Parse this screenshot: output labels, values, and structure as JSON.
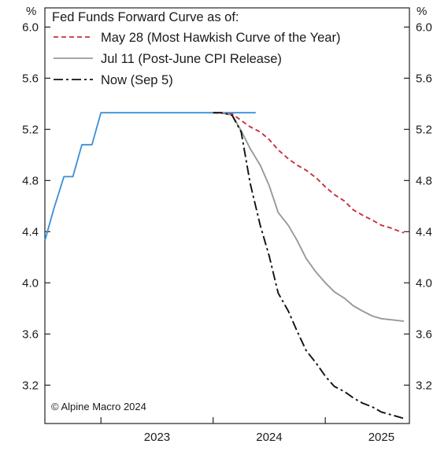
{
  "chart_data": {
    "type": "line",
    "legend": {
      "title": "Fed Funds Forward Curve as of:",
      "placement": "top-left",
      "entries": [
        {
          "name": "May 28 (Most Hawkish Curve of the Year)",
          "color": "#c8303c",
          "style": "dashed"
        },
        {
          "name": "Jul 11 (Post-June CPI Release)",
          "color": "#999999",
          "style": "solid"
        },
        {
          "name": "Now (Sep 5)",
          "color": "#111111",
          "style": "dash-dot"
        }
      ]
    },
    "credit": "© Alpine Macro 2024",
    "y_unit_left": "%",
    "y_unit_right": "%",
    "ylim": [
      2.9,
      6.15
    ],
    "yticks": [
      3.2,
      3.6,
      4.0,
      4.4,
      4.8,
      5.2,
      5.6,
      6.0
    ],
    "ytick_labels": [
      "3.2",
      "3.6",
      "4.0",
      "4.4",
      "4.8",
      "5.2",
      "5.6",
      "6.0"
    ],
    "xlim": [
      2022.5,
      2025.75
    ],
    "year_boundaries": [
      2023.0,
      2024.0,
      2025.0
    ],
    "xtick_labels": [
      {
        "label": "2023",
        "x": 2023.5
      },
      {
        "label": "2024",
        "x": 2024.5
      },
      {
        "label": "2025",
        "x": 2025.5
      }
    ],
    "grid": false,
    "series": [
      {
        "key": "actual",
        "color": "#3a8fd6",
        "style": "solid",
        "points": [
          [
            2022.5,
            4.33
          ],
          [
            2022.58,
            4.58
          ],
          [
            2022.67,
            4.83
          ],
          [
            2022.75,
            4.83
          ],
          [
            2022.83,
            5.08
          ],
          [
            2022.92,
            5.08
          ],
          [
            2023.0,
            5.33
          ],
          [
            2024.38,
            5.33
          ]
        ]
      },
      {
        "key": "may28",
        "name": "May 28 (Most Hawkish Curve of the Year)",
        "color": "#c8303c",
        "style": "dashed",
        "points": [
          [
            2024.0,
            5.33
          ],
          [
            2024.17,
            5.32
          ],
          [
            2024.25,
            5.27
          ],
          [
            2024.33,
            5.22
          ],
          [
            2024.42,
            5.18
          ],
          [
            2024.5,
            5.12
          ],
          [
            2024.58,
            5.04
          ],
          [
            2024.67,
            4.97
          ],
          [
            2024.75,
            4.92
          ],
          [
            2024.83,
            4.88
          ],
          [
            2024.92,
            4.82
          ],
          [
            2025.0,
            4.75
          ],
          [
            2025.08,
            4.69
          ],
          [
            2025.17,
            4.64
          ],
          [
            2025.25,
            4.57
          ],
          [
            2025.33,
            4.53
          ],
          [
            2025.42,
            4.49
          ],
          [
            2025.5,
            4.45
          ],
          [
            2025.58,
            4.43
          ],
          [
            2025.7,
            4.39
          ]
        ]
      },
      {
        "key": "jul11",
        "name": "Jul 11 (Post-June CPI Release)",
        "color": "#999999",
        "style": "solid",
        "points": [
          [
            2024.0,
            5.33
          ],
          [
            2024.08,
            5.33
          ],
          [
            2024.17,
            5.31
          ],
          [
            2024.25,
            5.19
          ],
          [
            2024.33,
            5.05
          ],
          [
            2024.42,
            4.92
          ],
          [
            2024.5,
            4.76
          ],
          [
            2024.58,
            4.55
          ],
          [
            2024.67,
            4.45
          ],
          [
            2024.75,
            4.33
          ],
          [
            2024.83,
            4.19
          ],
          [
            2024.92,
            4.08
          ],
          [
            2025.0,
            4.0
          ],
          [
            2025.08,
            3.93
          ],
          [
            2025.17,
            3.88
          ],
          [
            2025.25,
            3.82
          ],
          [
            2025.33,
            3.78
          ],
          [
            2025.42,
            3.74
          ],
          [
            2025.5,
            3.72
          ],
          [
            2025.7,
            3.7
          ]
        ]
      },
      {
        "key": "now",
        "name": "Now (Sep 5)",
        "color": "#111111",
        "style": "dash-dot",
        "points": [
          [
            2024.0,
            5.33
          ],
          [
            2024.08,
            5.33
          ],
          [
            2024.17,
            5.31
          ],
          [
            2024.25,
            5.18
          ],
          [
            2024.33,
            4.78
          ],
          [
            2024.42,
            4.45
          ],
          [
            2024.5,
            4.21
          ],
          [
            2024.58,
            3.92
          ],
          [
            2024.67,
            3.78
          ],
          [
            2024.75,
            3.62
          ],
          [
            2024.83,
            3.47
          ],
          [
            2024.92,
            3.37
          ],
          [
            2025.0,
            3.27
          ],
          [
            2025.08,
            3.19
          ],
          [
            2025.17,
            3.15
          ],
          [
            2025.25,
            3.1
          ],
          [
            2025.33,
            3.06
          ],
          [
            2025.42,
            3.03
          ],
          [
            2025.5,
            2.99
          ],
          [
            2025.7,
            2.94
          ]
        ]
      }
    ]
  }
}
